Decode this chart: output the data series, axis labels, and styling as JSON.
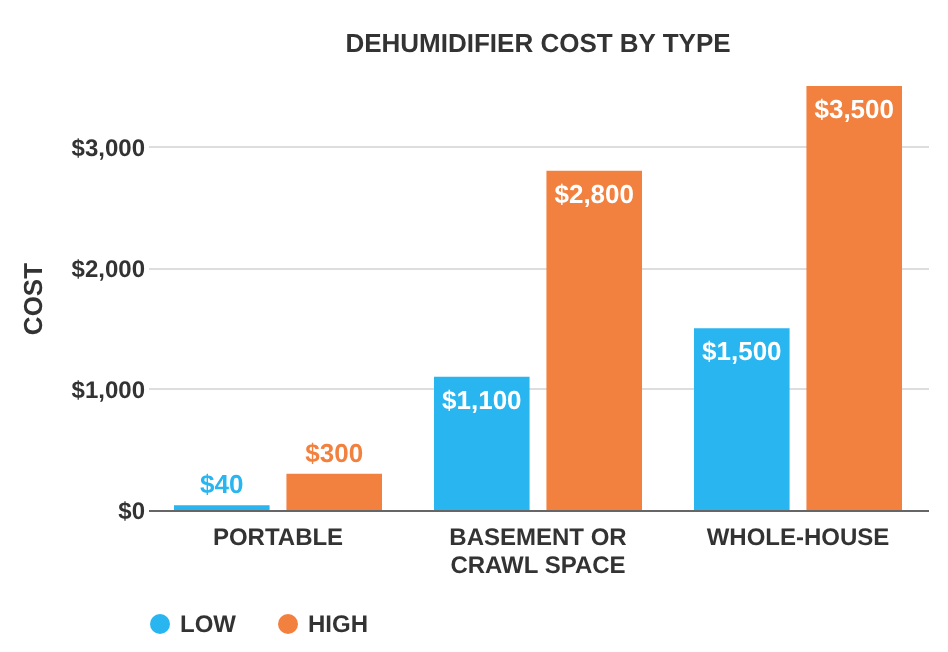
{
  "chart_data": {
    "type": "bar",
    "title": "DEHUMIDIFIER COST BY TYPE",
    "ylabel": "COST",
    "categories": [
      "PORTABLE",
      "BASEMENT OR CRAWL SPACE",
      "WHOLE-HOUSE"
    ],
    "series": [
      {
        "name": "LOW",
        "color": "#29b5f0",
        "values": [
          40,
          1100,
          1500
        ],
        "value_labels": [
          "$40",
          "$1,100",
          "$1,500"
        ]
      },
      {
        "name": "HIGH",
        "color": "#f2803f",
        "values": [
          300,
          2800,
          3500
        ],
        "value_labels": [
          "$300",
          "$2,800",
          "$3,500"
        ]
      }
    ],
    "ylim": [
      0,
      3500
    ],
    "yticks": [
      {
        "value": 0,
        "label": "$0"
      },
      {
        "value": 1000,
        "label": "$1,000"
      },
      {
        "value": 2000,
        "label": "$2,000"
      },
      {
        "value": 3000,
        "label": "$3,000"
      }
    ],
    "grid": "y",
    "legend": "bottom"
  }
}
